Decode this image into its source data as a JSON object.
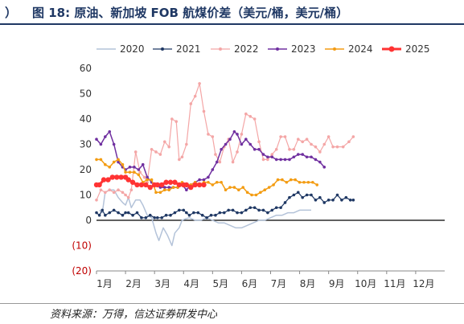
{
  "header": {
    "bracket": "）",
    "title": "图 18: 原油、新加坡 FOB 航煤价差（美元/桶，美元/桶）"
  },
  "source": "资料来源：万得，信达证券研发中心",
  "chart_data": {
    "type": "line",
    "x_axis": {
      "categories": [
        "1月",
        "2月",
        "3月",
        "4月",
        "5月",
        "6月",
        "7月",
        "8月",
        "9月",
        "10月",
        "11月",
        "12月"
      ]
    },
    "y_axis": {
      "min": -20,
      "max": 60,
      "step": 10,
      "tick_labels": [
        "(20)",
        "(10)",
        "0",
        "10",
        "20",
        "30",
        "40",
        "50",
        "60"
      ]
    },
    "legend_position": "top",
    "grid": false,
    "series": [
      {
        "name": "2020",
        "color": "#b4c3d9",
        "width": 1.5,
        "marker": "none",
        "values": [
          [
            0.1,
            4
          ],
          [
            0.2,
            3
          ],
          [
            0.3,
            11
          ],
          [
            0.45,
            12
          ],
          [
            0.6,
            12
          ],
          [
            0.75,
            9
          ],
          [
            0.9,
            7
          ],
          [
            1.0,
            6
          ],
          [
            1.1,
            9
          ],
          [
            1.2,
            5
          ],
          [
            1.35,
            8
          ],
          [
            1.5,
            8
          ],
          [
            1.6,
            6
          ],
          [
            1.75,
            2
          ],
          [
            1.9,
            1
          ],
          [
            2.05,
            -5
          ],
          [
            2.15,
            -8
          ],
          [
            2.3,
            -3
          ],
          [
            2.45,
            -6
          ],
          [
            2.6,
            -10
          ],
          [
            2.7,
            -5
          ],
          [
            2.85,
            -3
          ],
          [
            2.95,
            0
          ],
          [
            3.05,
            0.5
          ],
          [
            3.2,
            1
          ],
          [
            3.4,
            0
          ],
          [
            3.6,
            0
          ],
          [
            3.8,
            1
          ],
          [
            4.0,
            0
          ],
          [
            4.2,
            -1
          ],
          [
            4.4,
            -1
          ],
          [
            4.6,
            -2
          ],
          [
            4.8,
            -3
          ],
          [
            5.0,
            -3
          ],
          [
            5.2,
            -2
          ],
          [
            5.4,
            -1
          ],
          [
            5.6,
            0
          ],
          [
            5.8,
            0
          ],
          [
            6.0,
            1
          ],
          [
            6.2,
            2
          ],
          [
            6.4,
            2
          ],
          [
            6.6,
            3
          ],
          [
            6.8,
            3
          ],
          [
            7.0,
            4
          ],
          [
            7.2,
            4
          ],
          [
            7.4,
            4
          ]
        ]
      },
      {
        "name": "2021",
        "color": "#1f3864",
        "width": 1.2,
        "marker": "dot",
        "values": [
          [
            0,
            3
          ],
          [
            0.1,
            2
          ],
          [
            0.2,
            4
          ],
          [
            0.3,
            2
          ],
          [
            0.45,
            3
          ],
          [
            0.6,
            4
          ],
          [
            0.75,
            3
          ],
          [
            0.9,
            2
          ],
          [
            1.0,
            3
          ],
          [
            1.1,
            3
          ],
          [
            1.25,
            2
          ],
          [
            1.4,
            3
          ],
          [
            1.55,
            1
          ],
          [
            1.7,
            1
          ],
          [
            1.85,
            2
          ],
          [
            2.0,
            1
          ],
          [
            2.1,
            1
          ],
          [
            2.25,
            1
          ],
          [
            2.4,
            2
          ],
          [
            2.55,
            2
          ],
          [
            2.7,
            3
          ],
          [
            2.85,
            4
          ],
          [
            3.0,
            4
          ],
          [
            3.1,
            3
          ],
          [
            3.2,
            2
          ],
          [
            3.35,
            3
          ],
          [
            3.5,
            3
          ],
          [
            3.65,
            2
          ],
          [
            3.8,
            1
          ],
          [
            3.95,
            2
          ],
          [
            4.1,
            2
          ],
          [
            4.25,
            3
          ],
          [
            4.4,
            3
          ],
          [
            4.55,
            4
          ],
          [
            4.7,
            4
          ],
          [
            4.85,
            3
          ],
          [
            5.0,
            3
          ],
          [
            5.15,
            4
          ],
          [
            5.3,
            5
          ],
          [
            5.45,
            5
          ],
          [
            5.6,
            4
          ],
          [
            5.75,
            4
          ],
          [
            5.9,
            3
          ],
          [
            6.05,
            4
          ],
          [
            6.2,
            5
          ],
          [
            6.35,
            5
          ],
          [
            6.5,
            7
          ],
          [
            6.65,
            9
          ],
          [
            6.8,
            10
          ],
          [
            6.95,
            11
          ],
          [
            7.1,
            9
          ],
          [
            7.25,
            10
          ],
          [
            7.4,
            10
          ],
          [
            7.55,
            8
          ],
          [
            7.7,
            9
          ],
          [
            7.85,
            7
          ],
          [
            8.0,
            8
          ],
          [
            8.15,
            8
          ],
          [
            8.3,
            10
          ],
          [
            8.45,
            8
          ],
          [
            8.6,
            9
          ],
          [
            8.75,
            8
          ],
          [
            8.85,
            8
          ]
        ]
      },
      {
        "name": "2022",
        "color": "#f4a6a6",
        "width": 1.2,
        "marker": "dot",
        "values": [
          [
            0,
            8
          ],
          [
            0.15,
            12
          ],
          [
            0.3,
            11
          ],
          [
            0.45,
            12
          ],
          [
            0.6,
            11
          ],
          [
            0.75,
            12
          ],
          [
            0.9,
            11
          ],
          [
            1.0,
            10
          ],
          [
            1.1,
            9
          ],
          [
            1.2,
            12
          ],
          [
            1.35,
            27
          ],
          [
            1.5,
            19
          ],
          [
            1.65,
            17
          ],
          [
            1.75,
            15
          ],
          [
            1.9,
            28
          ],
          [
            2.05,
            27
          ],
          [
            2.2,
            26
          ],
          [
            2.35,
            31
          ],
          [
            2.5,
            29
          ],
          [
            2.6,
            40
          ],
          [
            2.75,
            39
          ],
          [
            2.85,
            24
          ],
          [
            2.95,
            25
          ],
          [
            3.1,
            30
          ],
          [
            3.25,
            46
          ],
          [
            3.4,
            49
          ],
          [
            3.55,
            54
          ],
          [
            3.7,
            43
          ],
          [
            3.85,
            34
          ],
          [
            4.0,
            33
          ],
          [
            4.1,
            26
          ],
          [
            4.25,
            23
          ],
          [
            4.4,
            29
          ],
          [
            4.55,
            32
          ],
          [
            4.7,
            23
          ],
          [
            4.85,
            27
          ],
          [
            5.0,
            34
          ],
          [
            5.15,
            42
          ],
          [
            5.3,
            41
          ],
          [
            5.45,
            40
          ],
          [
            5.6,
            31
          ],
          [
            5.75,
            24
          ],
          [
            5.9,
            24
          ],
          [
            6.05,
            26
          ],
          [
            6.2,
            28
          ],
          [
            6.35,
            33
          ],
          [
            6.5,
            33
          ],
          [
            6.65,
            28
          ],
          [
            6.8,
            28
          ],
          [
            6.95,
            32
          ],
          [
            7.1,
            31
          ],
          [
            7.25,
            32
          ],
          [
            7.4,
            30
          ],
          [
            7.55,
            29
          ],
          [
            7.7,
            27
          ],
          [
            7.85,
            30
          ],
          [
            8.0,
            33
          ],
          [
            8.15,
            29
          ],
          [
            8.3,
            29
          ],
          [
            8.5,
            29
          ],
          [
            8.7,
            31
          ],
          [
            8.85,
            33
          ]
        ]
      },
      {
        "name": "2023",
        "color": "#7030a0",
        "width": 1.5,
        "marker": "dot",
        "values": [
          [
            0,
            32
          ],
          [
            0.15,
            30
          ],
          [
            0.3,
            33
          ],
          [
            0.45,
            35
          ],
          [
            0.6,
            30
          ],
          [
            0.75,
            23
          ],
          [
            0.9,
            21
          ],
          [
            1.0,
            20
          ],
          [
            1.15,
            21
          ],
          [
            1.3,
            21
          ],
          [
            1.45,
            20
          ],
          [
            1.6,
            22
          ],
          [
            1.75,
            17
          ],
          [
            1.9,
            15
          ],
          [
            2.05,
            14
          ],
          [
            2.2,
            13
          ],
          [
            2.35,
            13
          ],
          [
            2.5,
            13
          ],
          [
            2.65,
            13
          ],
          [
            2.8,
            13
          ],
          [
            2.95,
            14
          ],
          [
            3.1,
            12
          ],
          [
            3.25,
            14
          ],
          [
            3.4,
            15
          ],
          [
            3.55,
            16
          ],
          [
            3.7,
            16
          ],
          [
            3.85,
            17
          ],
          [
            4.0,
            20
          ],
          [
            4.15,
            23
          ],
          [
            4.3,
            28
          ],
          [
            4.45,
            30
          ],
          [
            4.6,
            32
          ],
          [
            4.75,
            35
          ],
          [
            4.85,
            34
          ],
          [
            5.0,
            30
          ],
          [
            5.15,
            32
          ],
          [
            5.3,
            30
          ],
          [
            5.45,
            28
          ],
          [
            5.6,
            28
          ],
          [
            5.75,
            26
          ],
          [
            5.9,
            25
          ],
          [
            6.05,
            25
          ],
          [
            6.2,
            24
          ],
          [
            6.35,
            24
          ],
          [
            6.5,
            24
          ],
          [
            6.65,
            24
          ],
          [
            6.8,
            25
          ],
          [
            6.95,
            26
          ],
          [
            7.1,
            26
          ],
          [
            7.25,
            25
          ],
          [
            7.4,
            25
          ],
          [
            7.55,
            24
          ],
          [
            7.7,
            23
          ],
          [
            7.85,
            21
          ]
        ]
      },
      {
        "name": "2024",
        "color": "#f39c12",
        "width": 1.5,
        "marker": "dot",
        "values": [
          [
            0,
            24
          ],
          [
            0.15,
            24
          ],
          [
            0.3,
            22
          ],
          [
            0.45,
            21
          ],
          [
            0.6,
            23
          ],
          [
            0.75,
            24
          ],
          [
            0.9,
            22
          ],
          [
            1.0,
            19
          ],
          [
            1.15,
            19
          ],
          [
            1.3,
            19
          ],
          [
            1.45,
            18
          ],
          [
            1.6,
            15
          ],
          [
            1.75,
            16
          ],
          [
            1.9,
            16
          ],
          [
            2.05,
            11
          ],
          [
            2.2,
            11
          ],
          [
            2.35,
            12
          ],
          [
            2.5,
            12
          ],
          [
            2.65,
            13
          ],
          [
            2.8,
            13
          ],
          [
            2.95,
            15
          ],
          [
            3.1,
            14
          ],
          [
            3.25,
            14
          ],
          [
            3.4,
            15
          ],
          [
            3.55,
            14
          ],
          [
            3.7,
            15
          ],
          [
            3.85,
            15
          ],
          [
            4.0,
            14
          ],
          [
            4.15,
            15
          ],
          [
            4.3,
            15
          ],
          [
            4.45,
            12
          ],
          [
            4.6,
            13
          ],
          [
            4.75,
            13
          ],
          [
            4.9,
            12
          ],
          [
            5.05,
            13
          ],
          [
            5.2,
            11
          ],
          [
            5.35,
            10
          ],
          [
            5.5,
            10
          ],
          [
            5.65,
            11
          ],
          [
            5.8,
            12
          ],
          [
            5.95,
            13
          ],
          [
            6.1,
            14
          ],
          [
            6.25,
            16
          ],
          [
            6.4,
            16
          ],
          [
            6.55,
            15
          ],
          [
            6.7,
            16
          ],
          [
            6.85,
            16
          ],
          [
            7.0,
            15
          ],
          [
            7.15,
            15
          ],
          [
            7.3,
            15
          ],
          [
            7.45,
            15
          ],
          [
            7.6,
            14
          ]
        ]
      },
      {
        "name": "2025",
        "color": "#ff3333",
        "width": 3,
        "marker": "bigdot",
        "values": [
          [
            0,
            14
          ],
          [
            0.1,
            14
          ],
          [
            0.25,
            16
          ],
          [
            0.4,
            16
          ],
          [
            0.55,
            17
          ],
          [
            0.7,
            17
          ],
          [
            0.85,
            17
          ],
          [
            1.0,
            17
          ],
          [
            1.1,
            16
          ],
          [
            1.25,
            15
          ],
          [
            1.4,
            14
          ],
          [
            1.55,
            14
          ],
          [
            1.7,
            14
          ],
          [
            1.85,
            13
          ],
          [
            2.0,
            14
          ],
          [
            2.1,
            14
          ],
          [
            2.25,
            14
          ],
          [
            2.4,
            15
          ],
          [
            2.55,
            15
          ],
          [
            2.7,
            15
          ],
          [
            2.85,
            14
          ],
          [
            3.0,
            14
          ],
          [
            3.1,
            14
          ],
          [
            3.25,
            13
          ],
          [
            3.4,
            14
          ],
          [
            3.55,
            14
          ],
          [
            3.7,
            14
          ]
        ]
      }
    ]
  }
}
